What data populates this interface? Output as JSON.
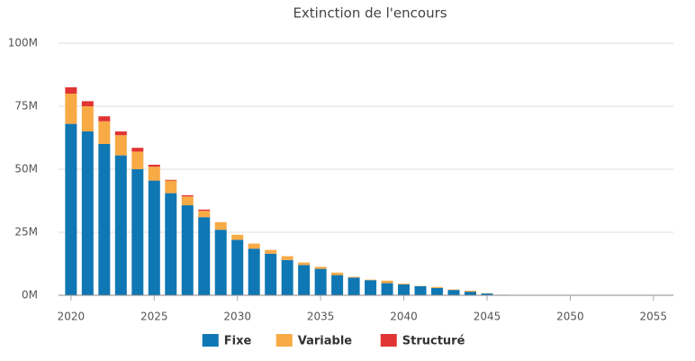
{
  "chart_data": {
    "type": "stacked_bar",
    "title": "Extinction de l'encours",
    "x": [
      2020,
      2021,
      2022,
      2023,
      2024,
      2025,
      2026,
      2027,
      2028,
      2029,
      2030,
      2031,
      2032,
      2033,
      2034,
      2035,
      2036,
      2037,
      2038,
      2039,
      2040,
      2041,
      2042,
      2043,
      2044,
      2045,
      2046,
      2047,
      2048,
      2049,
      2050,
      2051,
      2052,
      2053,
      2054,
      2055
    ],
    "series": [
      {
        "name": "Fixe",
        "color": "#0f77b4",
        "values": [
          68,
          65,
          60,
          55.5,
          50,
          45.5,
          40.5,
          35.7,
          31,
          26,
          22,
          18.5,
          16.5,
          14,
          12,
          10.5,
          8,
          7,
          6,
          4.8,
          4.3,
          3.6,
          2.9,
          2.1,
          1.4,
          0.7,
          0.2,
          0.1,
          0.1,
          0.1,
          0.1,
          0.1,
          0.1,
          0.1,
          0.1,
          0.1
        ]
      },
      {
        "name": "Variable",
        "color": "#f8aa45",
        "values": [
          12,
          10,
          9,
          8,
          7,
          5.5,
          5,
          3.5,
          2.5,
          3,
          2,
          2,
          1.5,
          1.5,
          1,
          0.8,
          1,
          0.3,
          0.2,
          1,
          0.3,
          0.1,
          0.4,
          0.2,
          0.4,
          0.1,
          0,
          0,
          0,
          0,
          0,
          0,
          0,
          0,
          0,
          0
        ]
      },
      {
        "name": "Structuré",
        "color": "#e13434",
        "values": [
          2.5,
          2,
          2,
          1.5,
          1.5,
          0.8,
          0.3,
          0.5,
          0.5,
          0,
          0,
          0,
          0,
          0,
          0,
          0,
          0,
          0,
          0,
          0,
          0,
          0,
          0,
          0,
          0,
          0,
          0,
          0,
          0,
          0,
          0,
          0,
          0,
          0,
          0,
          0
        ]
      }
    ],
    "xlim": [
      2019.25,
      2056.2
    ],
    "xticks": [
      2020,
      2025,
      2030,
      2035,
      2040,
      2045,
      2050,
      2055
    ],
    "ylim": [
      0,
      100
    ],
    "yticks": [
      {
        "value": 0,
        "label": "0M"
      },
      {
        "value": 25,
        "label": "25M"
      },
      {
        "value": 50,
        "label": "50M"
      },
      {
        "value": 75,
        "label": "75M"
      },
      {
        "value": 100,
        "label": "100M"
      }
    ],
    "grid": true,
    "legend": "bottom"
  }
}
